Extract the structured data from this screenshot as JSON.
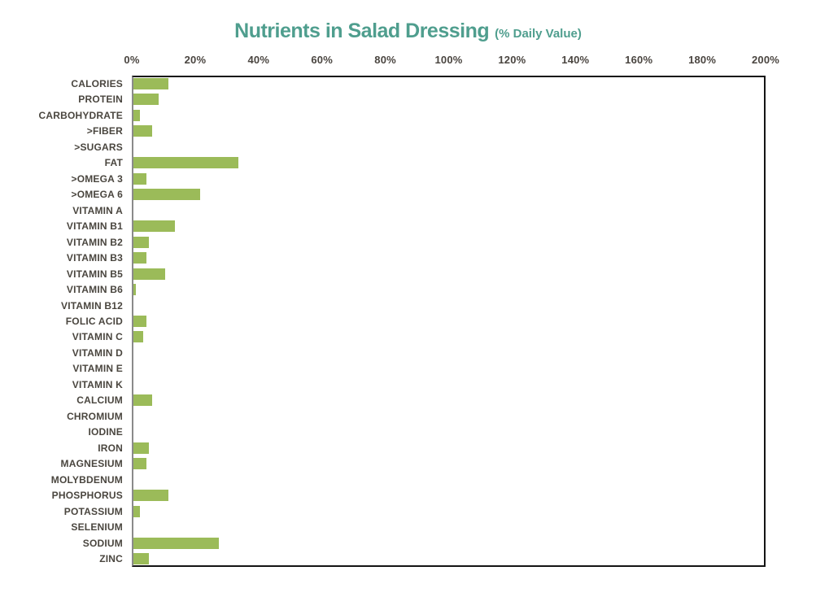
{
  "chart_data": {
    "type": "bar",
    "orientation": "horizontal",
    "title": "Nutrients in Salad Dressing",
    "title_suffix": "(% Daily Value)",
    "categories": [
      "CALORIES",
      "PROTEIN",
      "CARBOHYDRATE",
      ">FIBER",
      ">SUGARS",
      "FAT",
      ">OMEGA 3",
      ">OMEGA 6",
      "VITAMIN A",
      "VITAMIN B1",
      "VITAMIN B2",
      "VITAMIN B3",
      "VITAMIN B5",
      "VITAMIN B6",
      "VITAMIN B12",
      "FOLIC ACID",
      "VITAMIN C",
      "VITAMIN D",
      "VITAMIN E",
      "VITAMIN K",
      "CALCIUM",
      "CHROMIUM",
      "IODINE",
      "IRON",
      "MAGNESIUM",
      "MOLYBDENUM",
      "PHOSPHORUS",
      "POTASSIUM",
      "SELENIUM",
      "SODIUM",
      "ZINC"
    ],
    "values": [
      11,
      8,
      2,
      6,
      0,
      33,
      4,
      21,
      0,
      13,
      5,
      4,
      10,
      0.8,
      0,
      4,
      3,
      0,
      0,
      0,
      6,
      0,
      0,
      5,
      4,
      0,
      11,
      2,
      0,
      27,
      5
    ],
    "value_unit": "% Daily Value",
    "xlabel": "",
    "ylabel": "",
    "xlim": [
      0,
      200
    ],
    "x_tick_step": 20,
    "x_tick_labels": [
      "0%",
      "20%",
      "40%",
      "60%",
      "80%",
      "100%",
      "120%",
      "140%",
      "160%",
      "180%",
      "200%"
    ],
    "grid": false,
    "legend": false,
    "bar_color": "#9bbb59",
    "title_color": "#4f9e8e",
    "label_color": "#4a463f"
  }
}
